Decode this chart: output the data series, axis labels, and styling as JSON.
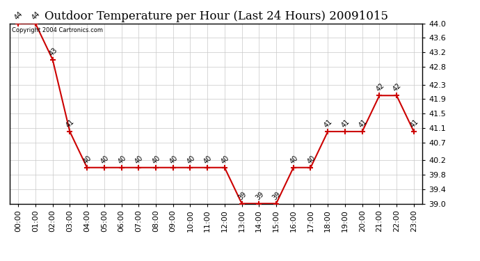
{
  "title": "Outdoor Temperature per Hour (Last 24 Hours) 20091015",
  "copyright_text": "Copyright 2004 Cartronics.com",
  "hours": [
    "00:00",
    "01:00",
    "02:00",
    "03:00",
    "04:00",
    "05:00",
    "06:00",
    "07:00",
    "08:00",
    "09:00",
    "10:00",
    "11:00",
    "12:00",
    "13:00",
    "14:00",
    "15:00",
    "16:00",
    "17:00",
    "18:00",
    "19:00",
    "20:00",
    "21:00",
    "22:00",
    "23:00"
  ],
  "temps": [
    44,
    44,
    43,
    41,
    40,
    40,
    40,
    40,
    40,
    40,
    40,
    40,
    40,
    39,
    39,
    39,
    40,
    40,
    41,
    41,
    41,
    42,
    42,
    41
  ],
  "line_color": "#cc0000",
  "marker_color": "#cc0000",
  "bg_color": "#ffffff",
  "grid_color": "#c8c8c8",
  "ylim_min": 39.0,
  "ylim_max": 44.0,
  "ytick_values": [
    39.0,
    39.4,
    39.8,
    40.2,
    40.7,
    41.1,
    41.5,
    41.9,
    42.3,
    42.8,
    43.2,
    43.6,
    44.0
  ],
  "ytick_labels": [
    "39.0",
    "39.4",
    "39.8",
    "40.2",
    "40.7",
    "41.1",
    "41.5",
    "41.9",
    "42.3",
    "42.8",
    "43.2",
    "43.6",
    "44.0"
  ],
  "title_fontsize": 12,
  "label_fontsize": 8,
  "annotation_fontsize": 7,
  "annotation_rotation": 45
}
